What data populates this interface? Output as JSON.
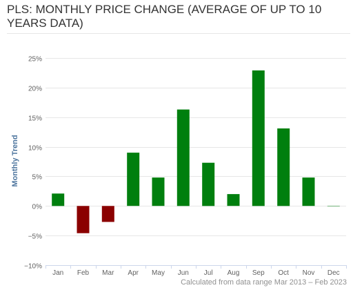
{
  "title": "PLS: MONTHLY PRICE CHANGE (AVERAGE OF UP TO 10 YEARS DATA)",
  "footnote": "Calculated from data range Mar 2013 – Feb 2023",
  "colors": {
    "positive": "#007f0e",
    "negative": "#8b0000",
    "ylabel": "#4d759e",
    "grid": "#e6e6e6",
    "axis": "#ccd6eb",
    "tick_text": "#606060"
  },
  "chart_data": {
    "type": "bar",
    "title": "PLS: MONTHLY PRICE CHANGE (AVERAGE OF UP TO 10 YEARS DATA)",
    "xlabel": "",
    "ylabel": "Monthly Trend",
    "categories": [
      "Jan",
      "Feb",
      "Mar",
      "Apr",
      "May",
      "Jun",
      "Jul",
      "Aug",
      "Sep",
      "Oct",
      "Nov",
      "Dec"
    ],
    "values": [
      2.1,
      -4.6,
      -2.7,
      9.0,
      4.8,
      16.3,
      7.3,
      2.0,
      22.9,
      13.1,
      4.8,
      0.0
    ],
    "ylim": [
      -10,
      25
    ],
    "yticks": [
      -10,
      -5,
      0,
      5,
      10,
      15,
      20,
      25
    ],
    "ytick_labels": [
      "−10%",
      "−5%",
      "0%",
      "5%",
      "10%",
      "15%",
      "20%",
      "25%"
    ],
    "grid": true,
    "legend": "none"
  }
}
